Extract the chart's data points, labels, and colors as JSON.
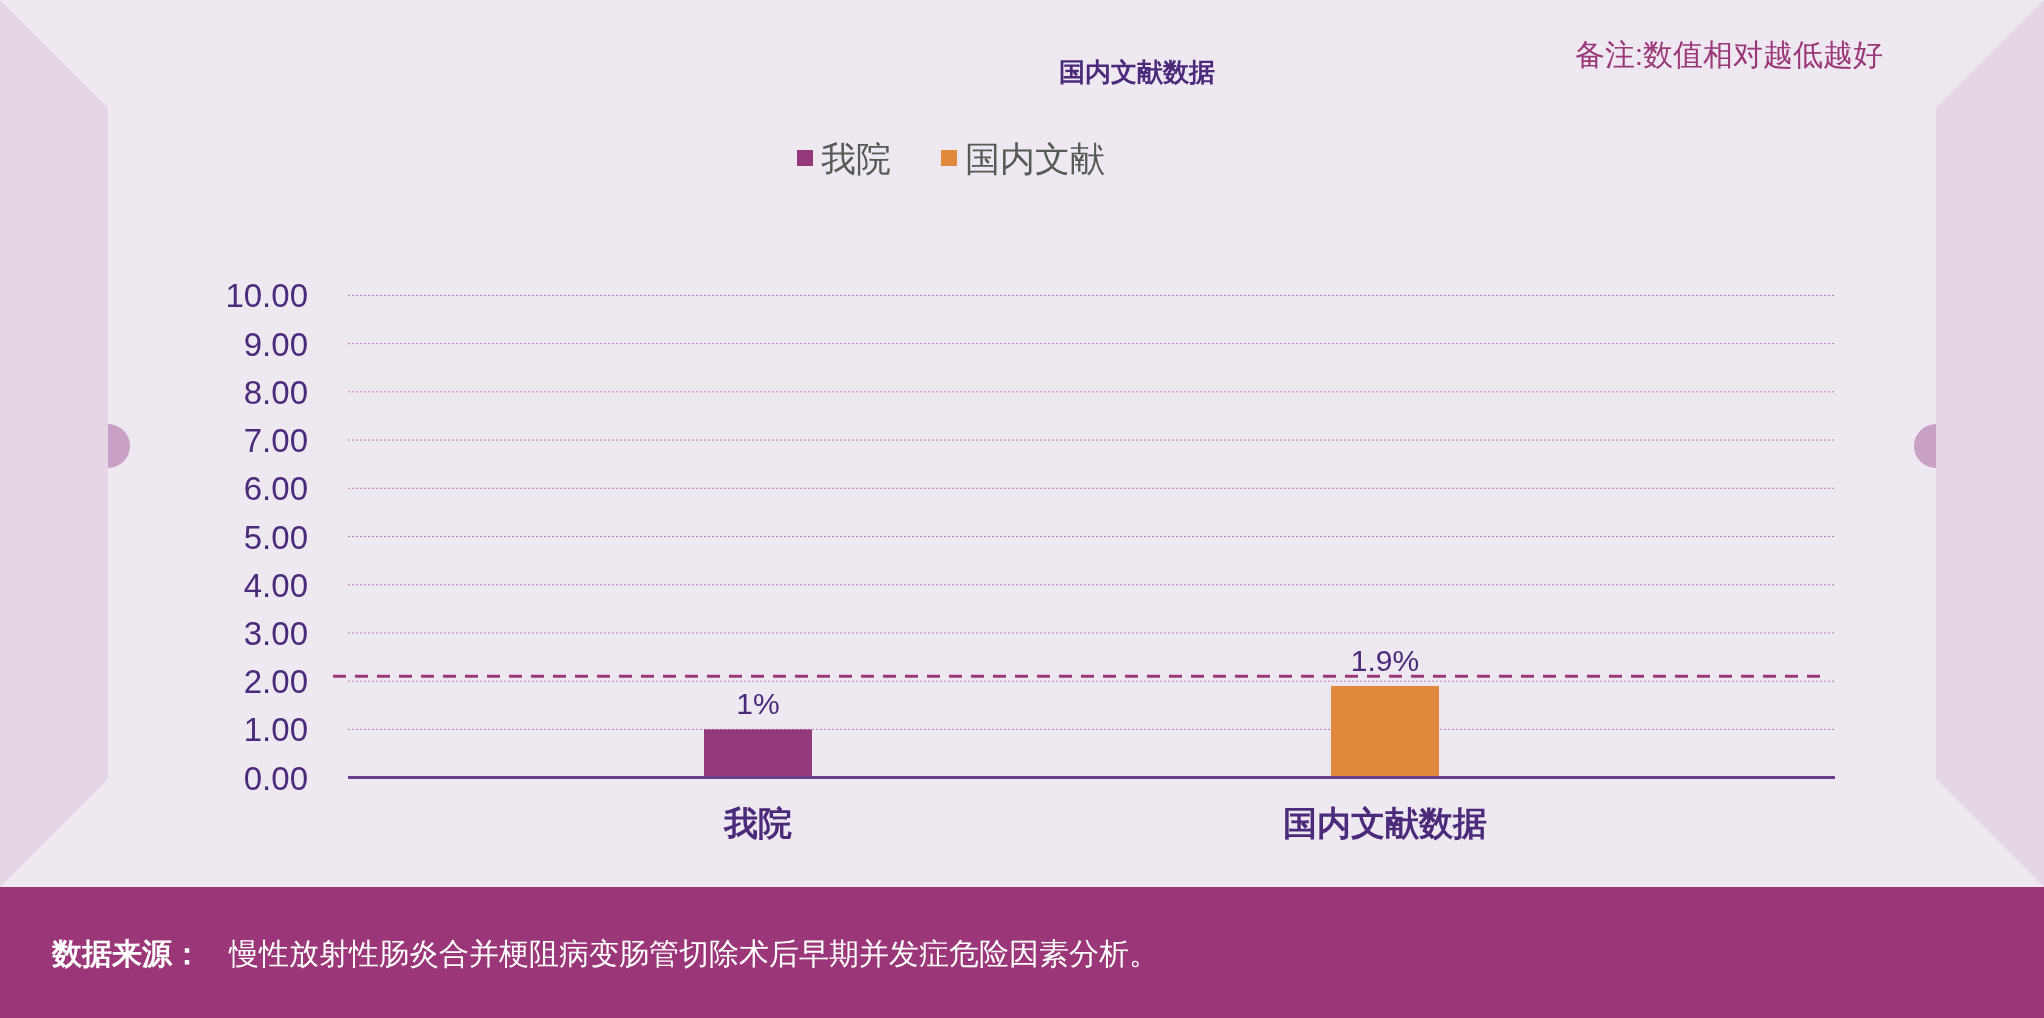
{
  "chart_data": {
    "type": "bar",
    "title": "国内文献数据",
    "annotations": [
      "备注:数值相对越低越好",
      "数据来源：",
      "慢性放射性肠炎合并梗阻病变肠管切除术后早期并发症危险因素分析。"
    ],
    "categories": [
      "我院",
      "国内文献数据"
    ],
    "stacked": true,
    "series": [
      {
        "name": "我院",
        "color": "#943a7c",
        "values": [
          1,
          null
        ],
        "value_labels": [
          "1%",
          null
        ]
      },
      {
        "name": "国内文献",
        "color": "#e0883c",
        "values": [
          null,
          1.9
        ],
        "value_labels": [
          null,
          "1.9%"
        ]
      }
    ],
    "ylim": [
      0,
      10
    ],
    "yticks": [
      {
        "value": 0,
        "label": "0.00"
      },
      {
        "value": 1,
        "label": "1.00"
      },
      {
        "value": 2,
        "label": "2.00"
      },
      {
        "value": 3,
        "label": "3.00"
      },
      {
        "value": 4,
        "label": "4.00"
      },
      {
        "value": 5,
        "label": "5.00"
      },
      {
        "value": 6,
        "label": "6.00"
      },
      {
        "value": 7,
        "label": "7.00"
      },
      {
        "value": 8,
        "label": "8.00"
      },
      {
        "value": 9,
        "label": "9.00"
      },
      {
        "value": 10,
        "label": "10.00"
      }
    ],
    "grid": "y",
    "legend": "top",
    "ref_lines": [
      {
        "axis": "y",
        "value": 2.1,
        "color": "#9b3779",
        "line_style": "dashed"
      }
    ]
  }
}
